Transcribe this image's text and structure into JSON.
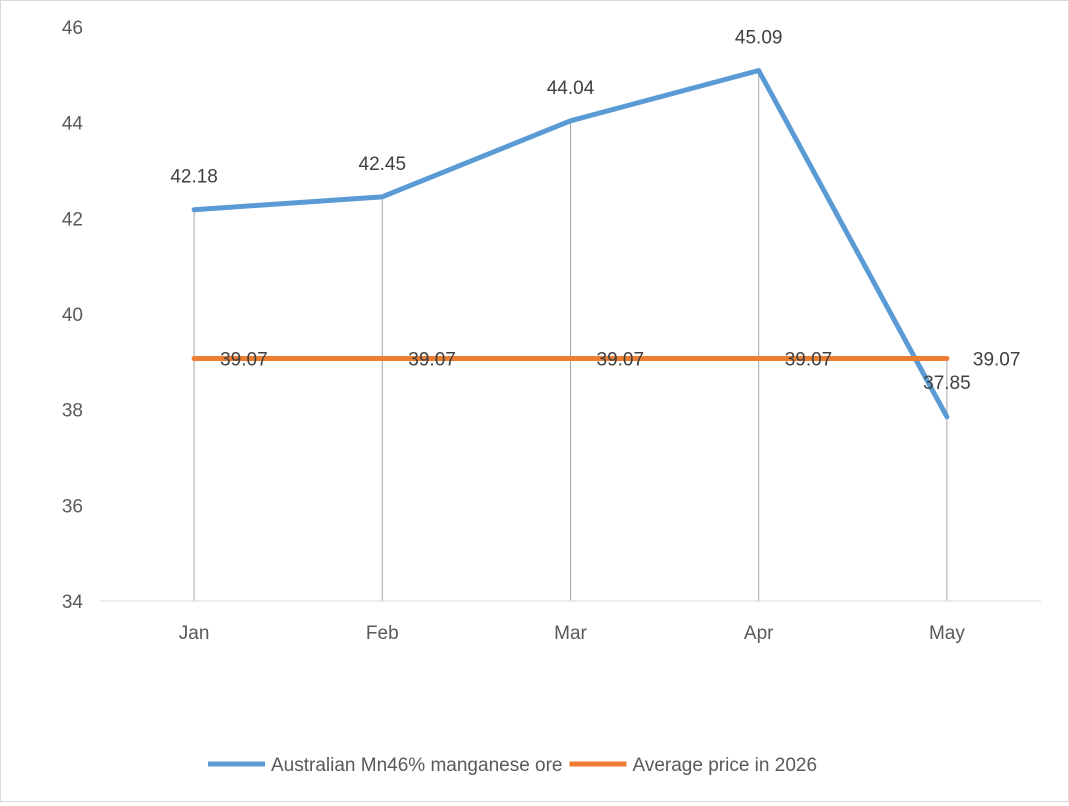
{
  "chart_data": {
    "type": "line",
    "title": "",
    "xlabel": "",
    "ylabel": "",
    "categories": [
      "Jan",
      "Feb",
      "Mar",
      "Apr",
      "May"
    ],
    "ylim": [
      34,
      46
    ],
    "yticks": [
      34,
      36,
      38,
      40,
      42,
      44,
      46
    ],
    "drop_lines": true,
    "legend_position": "bottom",
    "series": [
      {
        "name": "Australian Mn46% manganese ore",
        "color": "#5b9bd5",
        "values": [
          42.18,
          42.45,
          44.04,
          45.09,
          37.85
        ]
      },
      {
        "name": "Average price in 2026",
        "color": "#ed7d31",
        "values": [
          39.07,
          39.07,
          39.07,
          39.07,
          39.07
        ]
      }
    ]
  }
}
